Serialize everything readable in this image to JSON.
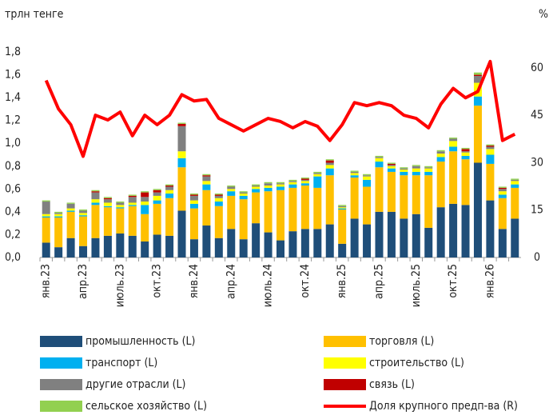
{
  "chart_data": {
    "type": "bar",
    "stacked": true,
    "title": "трлн тенге",
    "y2_label": "%",
    "categories": [
      "янв.23",
      null,
      null,
      "апр.23",
      null,
      null,
      "июль.23",
      null,
      null,
      "окт.23",
      null,
      null,
      "янв.24",
      null,
      null,
      "апр.24",
      null,
      null,
      "июль.24",
      null,
      null,
      "окт.24",
      null,
      null,
      "янв.25",
      null,
      null,
      "апр.25",
      null,
      null,
      "июль.25",
      null,
      null,
      "окт.25",
      null,
      null,
      "янв.26",
      null,
      null
    ],
    "ylim": [
      0,
      1.8
    ],
    "yticks": [
      {
        "value": 0,
        "label": "0,0"
      },
      {
        "value": 0.2,
        "label": "0,2"
      },
      {
        "value": 0.4,
        "label": "0,4"
      },
      {
        "value": 0.6,
        "label": "0,6"
      },
      {
        "value": 0.8,
        "label": "0,8"
      },
      {
        "value": 1.0,
        "label": "1,0"
      },
      {
        "value": 1.2,
        "label": "1,2"
      },
      {
        "value": 1.4,
        "label": "1,4"
      },
      {
        "value": 1.6,
        "label": "1,6"
      },
      {
        "value": 1.8,
        "label": "1,8"
      }
    ],
    "y2lim": [
      0,
      65
    ],
    "y2ticks": [
      0,
      15,
      30,
      45,
      60
    ],
    "series": [
      {
        "name": "промышленность (L)",
        "color": "#1f4e79",
        "values": [
          0.13,
          0.09,
          0.17,
          0.1,
          0.17,
          0.19,
          0.21,
          0.19,
          0.14,
          0.2,
          0.19,
          0.41,
          0.16,
          0.28,
          0.17,
          0.25,
          0.16,
          0.3,
          0.22,
          0.15,
          0.23,
          0.25,
          0.25,
          0.29,
          0.12,
          0.34,
          0.29,
          0.4,
          0.4,
          0.34,
          0.38,
          0.26,
          0.44,
          0.47,
          0.46,
          0.83,
          0.5,
          0.25,
          0.34
        ]
      },
      {
        "name": "торговля (L)",
        "color": "#ffc000",
        "values": [
          0.22,
          0.26,
          0.23,
          0.26,
          0.29,
          0.25,
          0.22,
          0.26,
          0.24,
          0.27,
          0.33,
          0.38,
          0.27,
          0.31,
          0.28,
          0.29,
          0.35,
          0.27,
          0.36,
          0.44,
          0.38,
          0.38,
          0.36,
          0.43,
          0.3,
          0.36,
          0.33,
          0.39,
          0.35,
          0.38,
          0.34,
          0.46,
          0.4,
          0.46,
          0.4,
          0.5,
          0.32,
          0.27,
          0.27
        ]
      },
      {
        "name": "транспорт (L)",
        "color": "#00b0f0",
        "values": [
          0.01,
          0.01,
          0.01,
          0.01,
          0.02,
          0.01,
          0.01,
          0.01,
          0.08,
          0.03,
          0.04,
          0.08,
          0.04,
          0.05,
          0.04,
          0.04,
          0.03,
          0.03,
          0.03,
          0.03,
          0.03,
          0.02,
          0.1,
          0.06,
          0.01,
          0.02,
          0.06,
          0.05,
          0.03,
          0.03,
          0.03,
          0.03,
          0.04,
          0.04,
          0.03,
          0.08,
          0.08,
          0.03,
          0.03
        ]
      },
      {
        "name": "строительство (L)",
        "color": "#ffff00",
        "values": [
          0.02,
          0.02,
          0.02,
          0.02,
          0.03,
          0.03,
          0.02,
          0.02,
          0.03,
          0.04,
          0.03,
          0.06,
          0.03,
          0.03,
          0.03,
          0.02,
          0.02,
          0.02,
          0.02,
          0.02,
          0.02,
          0.02,
          0.02,
          0.03,
          0.01,
          0.02,
          0.03,
          0.03,
          0.02,
          0.02,
          0.03,
          0.03,
          0.03,
          0.05,
          0.03,
          0.12,
          0.05,
          0.03,
          0.03
        ]
      },
      {
        "name": "другие отрасли (L)",
        "color": "#808080",
        "values": [
          0.11,
          0.01,
          0.04,
          0.02,
          0.06,
          0.03,
          0.02,
          0.05,
          0.04,
          0.03,
          0.03,
          0.22,
          0.04,
          0.04,
          0.02,
          0.02,
          0.01,
          0.01,
          0.02,
          0.01,
          0.01,
          0.01,
          0.01,
          0.02,
          0.01,
          0.01,
          0.01,
          0.01,
          0.01,
          0.01,
          0.02,
          0.01,
          0.02,
          0.02,
          0.01,
          0.06,
          0.02,
          0.02,
          0.01
        ]
      },
      {
        "name": "связь (L)",
        "color": "#c00000",
        "values": [
          0.0,
          0.0,
          0.0,
          0.0,
          0.01,
          0.01,
          0.0,
          0.01,
          0.04,
          0.02,
          0.01,
          0.02,
          0.01,
          0.01,
          0.01,
          0.0,
          0.0,
          0.0,
          0.0,
          0.0,
          0.0,
          0.01,
          0.0,
          0.02,
          0.0,
          0.0,
          0.0,
          0.0,
          0.01,
          0.0,
          0.0,
          0.0,
          0.0,
          0.0,
          0.02,
          0.01,
          0.01,
          0.01,
          0.0
        ]
      },
      {
        "name": "сельское хозяйство (L)",
        "color": "#92d050",
        "values": [
          0.01,
          0.01,
          0.01,
          0.01,
          0.01,
          0.01,
          0.01,
          0.01,
          0.01,
          0.01,
          0.01,
          0.01,
          0.01,
          0.01,
          0.01,
          0.01,
          0.01,
          0.01,
          0.01,
          0.01,
          0.01,
          0.01,
          0.01,
          0.01,
          0.01,
          0.01,
          0.01,
          0.01,
          0.01,
          0.01,
          0.01,
          0.01,
          0.01,
          0.01,
          0.01,
          0.02,
          0.01,
          0.01,
          0.01
        ]
      },
      {
        "name": "Доля крупного предп-ва (R)",
        "color": "#ff0000",
        "type": "line",
        "axis": "y2",
        "values": [
          56,
          47,
          42,
          32,
          45,
          43.5,
          46,
          38.5,
          45,
          42,
          45,
          51.5,
          49.5,
          50,
          44,
          42,
          40,
          42,
          44,
          43,
          41,
          43,
          41.5,
          37,
          42,
          49,
          48,
          49,
          48,
          45,
          44,
          41,
          48.5,
          53.5,
          50.5,
          52.5,
          62,
          37,
          39
        ]
      }
    ]
  }
}
